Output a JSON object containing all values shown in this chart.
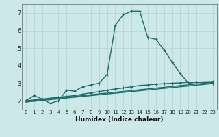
{
  "xlabel": "Humidex (Indice chaleur)",
  "bg_color": "#cce8e8",
  "line_color": "#1a6b6b",
  "grid_color": "#b8d4d4",
  "xlim": [
    -0.5,
    23.5
  ],
  "ylim": [
    1.5,
    7.5
  ],
  "yticks": [
    2,
    3,
    4,
    5,
    6,
    7
  ],
  "xticks": [
    0,
    1,
    2,
    3,
    4,
    5,
    6,
    7,
    8,
    9,
    10,
    11,
    12,
    13,
    14,
    15,
    16,
    17,
    18,
    19,
    20,
    21,
    22,
    23
  ],
  "curves": [
    {
      "x": [
        0,
        1,
        2,
        3,
        4,
        5,
        6,
        7,
        8,
        9,
        10,
        11,
        12,
        13,
        14,
        15,
        16,
        17,
        18,
        19,
        20,
        21,
        22,
        23
      ],
      "y": [
        2.0,
        2.3,
        2.1,
        1.85,
        2.0,
        2.6,
        2.55,
        2.8,
        2.9,
        3.0,
        3.5,
        6.3,
        6.9,
        7.1,
        7.1,
        5.6,
        5.5,
        4.9,
        4.2,
        3.55,
        3.0,
        3.05,
        3.05,
        3.0
      ],
      "marker": true,
      "lw": 1.0
    },
    {
      "x": [
        0,
        1,
        2,
        3,
        4,
        5,
        6,
        7,
        8,
        9,
        10,
        11,
        12,
        13,
        14,
        15,
        16,
        17,
        18,
        19,
        20,
        21,
        22,
        23
      ],
      "y": [
        2.0,
        2.05,
        2.1,
        2.15,
        2.2,
        2.25,
        2.3,
        2.38,
        2.45,
        2.52,
        2.6,
        2.67,
        2.73,
        2.8,
        2.87,
        2.9,
        2.95,
        2.97,
        3.0,
        3.02,
        3.05,
        3.07,
        3.08,
        3.1
      ],
      "marker": true,
      "lw": 1.0
    },
    {
      "x": [
        0,
        23
      ],
      "y": [
        1.97,
        3.05
      ],
      "marker": false,
      "lw": 1.0
    },
    {
      "x": [
        0,
        23
      ],
      "y": [
        1.93,
        2.98
      ],
      "marker": false,
      "lw": 1.0
    }
  ]
}
